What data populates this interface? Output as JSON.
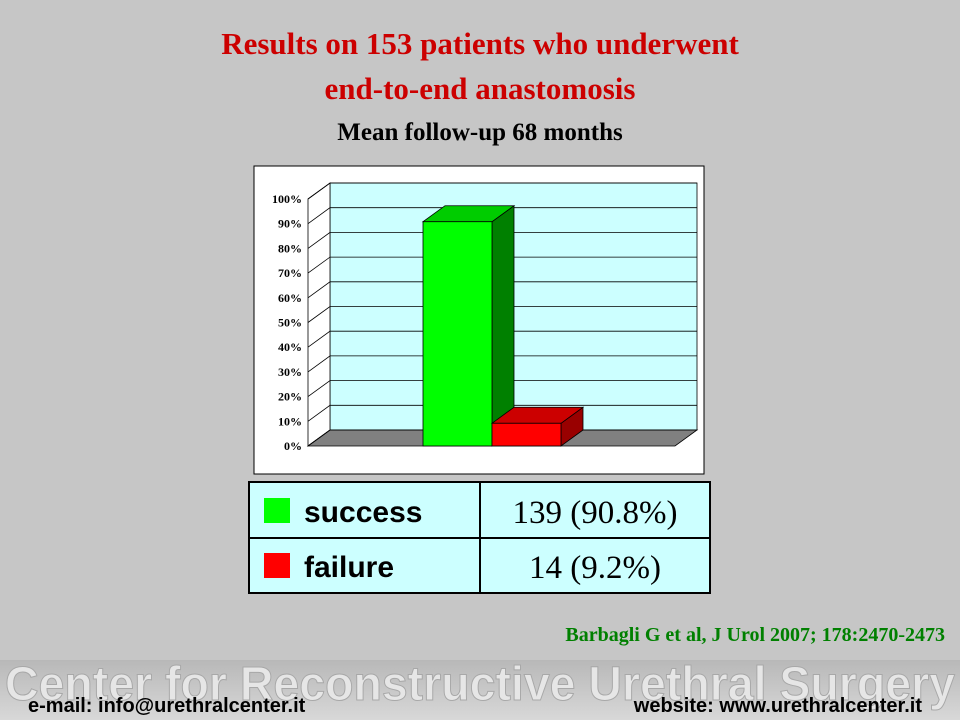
{
  "chart_data": {
    "type": "bar3d",
    "title": [
      "Results on 153 patients who underwent",
      "end-to-end anastomosis"
    ],
    "subtitle": "Mean follow-up 68 months",
    "categories": [
      null
    ],
    "series": [
      {
        "name": "success",
        "color": "#00ff00",
        "side_color": "#008000",
        "top_color": "#00cc00",
        "values": [
          90.8
        ],
        "value_labels": [
          "139 (90.8%)"
        ]
      },
      {
        "name": "failure",
        "color": "#ff0000",
        "side_color": "#990000",
        "top_color": "#cc0000",
        "values": [
          9.2
        ],
        "value_labels": [
          "14 (9.2%)"
        ]
      }
    ],
    "ylim": [
      0,
      100
    ],
    "yticks": [
      {
        "value": 0,
        "label": "0%"
      },
      {
        "value": 10,
        "label": "10%"
      },
      {
        "value": 20,
        "label": "20%"
      },
      {
        "value": 30,
        "label": "30%"
      },
      {
        "value": 40,
        "label": "40%"
      },
      {
        "value": 50,
        "label": "50%"
      },
      {
        "value": 60,
        "label": "60%"
      },
      {
        "value": 70,
        "label": "70%"
      },
      {
        "value": 80,
        "label": "80%"
      },
      {
        "value": 90,
        "label": "90%"
      },
      {
        "value": 100,
        "label": "100%"
      }
    ],
    "grid": true
  },
  "citation": "Barbagli G et al, J Urol 2007; 178:2470-2473",
  "footer": {
    "banner": "Center for Reconstructive Urethral Surgery",
    "email": "e-mail: info@urethralcenter.it",
    "website": "website: www.urethralcenter.it"
  }
}
